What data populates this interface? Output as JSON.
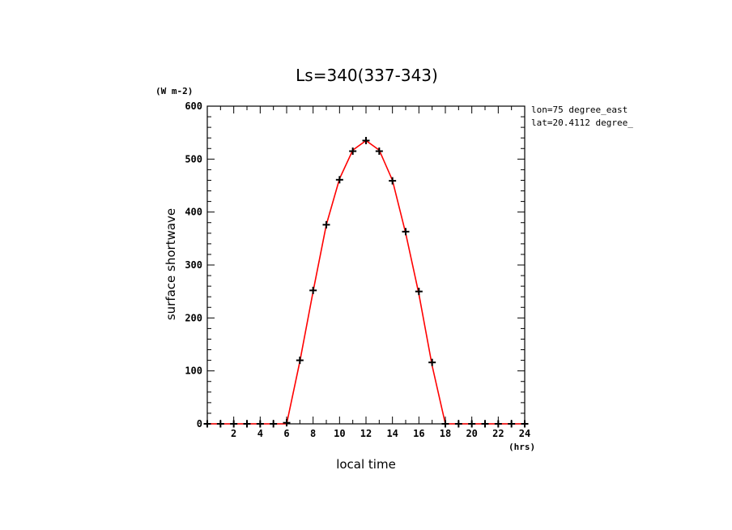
{
  "chart_data": {
    "type": "line",
    "title": "Ls=340(337-343)",
    "xlabel": "local time",
    "ylabel": "surface shortwave",
    "xunit": "(hrs)",
    "yunit": "(W m-2)",
    "xlim": [
      0,
      24
    ],
    "ylim": [
      0,
      600
    ],
    "xticks": [
      "2",
      "4",
      "6",
      "8",
      "10",
      "12",
      "14",
      "16",
      "18",
      "20",
      "22",
      "24"
    ],
    "yticks": [
      "0",
      "100",
      "200",
      "300",
      "400",
      "500",
      "600"
    ],
    "annotations": [
      "lon=75 degree_east",
      "lat=20.4112 degree_"
    ],
    "grid": false,
    "series": [
      {
        "color": "#ff0000",
        "style": "line",
        "x": [
          0,
          1,
          2,
          3,
          4,
          5,
          6,
          7,
          8,
          9,
          10,
          11,
          12,
          13,
          14,
          15,
          16,
          17,
          18,
          19,
          20,
          21,
          22,
          23,
          24
        ],
        "y": [
          0,
          0,
          0,
          0,
          0,
          0,
          0,
          118,
          250,
          376,
          463,
          517,
          535,
          517,
          460,
          360,
          245,
          110,
          0,
          0,
          0,
          0,
          0,
          0,
          0
        ]
      },
      {
        "color": "#000000",
        "style": "markers",
        "x": [
          0,
          1,
          2,
          3,
          4,
          5,
          6,
          7,
          8,
          9,
          10,
          11,
          12,
          13,
          14,
          15,
          16,
          17,
          18,
          19,
          20,
          21,
          22,
          23,
          24
        ],
        "y": [
          0,
          0,
          0,
          0,
          0,
          0,
          2,
          120,
          252,
          376,
          461,
          515,
          535,
          515,
          459,
          363,
          250,
          116,
          0,
          0,
          0,
          0,
          0,
          0,
          0
        ]
      }
    ]
  }
}
